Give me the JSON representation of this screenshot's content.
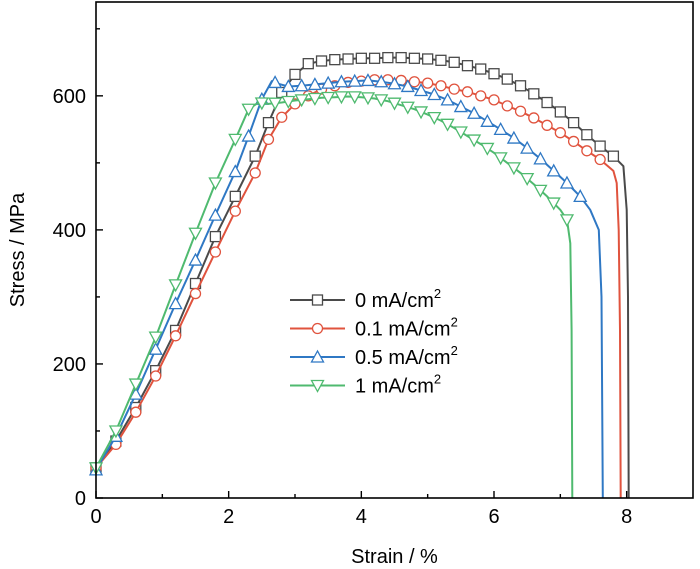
{
  "chart_data": {
    "type": "line",
    "xlabel": "Strain / %",
    "ylabel": "Stress / MPa",
    "xlim": [
      0,
      9
    ],
    "ylim": [
      0,
      740
    ],
    "xticks": [
      0,
      2,
      4,
      6,
      8
    ],
    "yticks": [
      0,
      200,
      400,
      600
    ],
    "x_tick_labels": [
      "0",
      "2",
      "4",
      "6",
      "8"
    ],
    "y_tick_labels": [
      "0",
      "200",
      "400",
      "600"
    ],
    "grid": false,
    "legend_position": "center",
    "series": [
      {
        "name": "0 mA/cm2",
        "label_main": "0 mA/cm",
        "label_sup": "2",
        "color": "#4a4a4a",
        "marker": "square",
        "points": [
          [
            0.0,
            45
          ],
          [
            0.3,
            85
          ],
          [
            0.6,
            135
          ],
          [
            0.9,
            190
          ],
          [
            1.2,
            250
          ],
          [
            1.5,
            320
          ],
          [
            1.8,
            390
          ],
          [
            2.1,
            450
          ],
          [
            2.4,
            510
          ],
          [
            2.6,
            560
          ],
          [
            2.8,
            605
          ],
          [
            3.0,
            632
          ],
          [
            3.2,
            648
          ],
          [
            3.4,
            652
          ],
          [
            3.6,
            654
          ],
          [
            3.8,
            655
          ],
          [
            4.0,
            656
          ],
          [
            4.2,
            656
          ],
          [
            4.4,
            657
          ],
          [
            4.6,
            657
          ],
          [
            4.8,
            656
          ],
          [
            5.0,
            655
          ],
          [
            5.2,
            653
          ],
          [
            5.4,
            650
          ],
          [
            5.6,
            645
          ],
          [
            5.8,
            640
          ],
          [
            6.0,
            633
          ],
          [
            6.2,
            625
          ],
          [
            6.4,
            615
          ],
          [
            6.6,
            603
          ],
          [
            6.8,
            590
          ],
          [
            7.0,
            576
          ],
          [
            7.2,
            560
          ],
          [
            7.4,
            542
          ],
          [
            7.6,
            525
          ],
          [
            7.8,
            510
          ],
          [
            7.95,
            495
          ],
          [
            8.0,
            430
          ],
          [
            8.02,
            300
          ],
          [
            8.03,
            0
          ]
        ],
        "markers_x": [
          0.0,
          0.3,
          0.6,
          0.9,
          1.2,
          1.5,
          1.8,
          2.1,
          2.4,
          2.6,
          2.8,
          3.0,
          3.2,
          3.4,
          3.6,
          3.8,
          4.0,
          4.2,
          4.4,
          4.6,
          4.8,
          5.0,
          5.2,
          5.4,
          5.6,
          5.8,
          6.0,
          6.2,
          6.4,
          6.6,
          6.8,
          7.0,
          7.2,
          7.4,
          7.6,
          7.8
        ]
      },
      {
        "name": "0.1 mA/cm2",
        "label_main": "0.1 mA/cm",
        "label_sup": "2",
        "color": "#e0533e",
        "marker": "circle",
        "points": [
          [
            0.0,
            45
          ],
          [
            0.3,
            80
          ],
          [
            0.6,
            128
          ],
          [
            0.9,
            182
          ],
          [
            1.2,
            242
          ],
          [
            1.5,
            305
          ],
          [
            1.8,
            367
          ],
          [
            2.1,
            428
          ],
          [
            2.4,
            485
          ],
          [
            2.6,
            535
          ],
          [
            2.8,
            568
          ],
          [
            3.0,
            588
          ],
          [
            3.2,
            600
          ],
          [
            3.4,
            610
          ],
          [
            3.6,
            615
          ],
          [
            3.8,
            620
          ],
          [
            4.0,
            622
          ],
          [
            4.2,
            624
          ],
          [
            4.4,
            624
          ],
          [
            4.6,
            623
          ],
          [
            4.8,
            621
          ],
          [
            5.0,
            619
          ],
          [
            5.2,
            615
          ],
          [
            5.4,
            610
          ],
          [
            5.6,
            606
          ],
          [
            5.8,
            600
          ],
          [
            6.0,
            594
          ],
          [
            6.2,
            585
          ],
          [
            6.4,
            577
          ],
          [
            6.6,
            567
          ],
          [
            6.8,
            556
          ],
          [
            7.0,
            545
          ],
          [
            7.2,
            532
          ],
          [
            7.4,
            518
          ],
          [
            7.6,
            505
          ],
          [
            7.8,
            488
          ],
          [
            7.85,
            470
          ],
          [
            7.88,
            400
          ],
          [
            7.9,
            250
          ],
          [
            7.91,
            0
          ]
        ],
        "markers_x": [
          0.0,
          0.3,
          0.6,
          0.9,
          1.2,
          1.5,
          1.8,
          2.1,
          2.4,
          2.6,
          2.8,
          3.0,
          3.2,
          3.4,
          3.6,
          3.8,
          4.0,
          4.2,
          4.4,
          4.6,
          4.8,
          5.0,
          5.2,
          5.4,
          5.6,
          5.8,
          6.0,
          6.2,
          6.4,
          6.6,
          6.8,
          7.0,
          7.2,
          7.4,
          7.6
        ]
      },
      {
        "name": "0.5 mA/cm2",
        "label_main": "0.5 mA/cm",
        "label_sup": "2",
        "color": "#2f78c4",
        "marker": "triangle-up",
        "points": [
          [
            0.0,
            42
          ],
          [
            0.3,
            92
          ],
          [
            0.6,
            155
          ],
          [
            0.9,
            222
          ],
          [
            1.2,
            290
          ],
          [
            1.5,
            355
          ],
          [
            1.8,
            422
          ],
          [
            2.1,
            487
          ],
          [
            2.3,
            540
          ],
          [
            2.5,
            595
          ],
          [
            2.65,
            622
          ],
          [
            2.75,
            618
          ],
          [
            2.9,
            614
          ],
          [
            3.1,
            615
          ],
          [
            3.3,
            617
          ],
          [
            3.5,
            619
          ],
          [
            3.7,
            621
          ],
          [
            3.9,
            622
          ],
          [
            4.1,
            623
          ],
          [
            4.3,
            621
          ],
          [
            4.5,
            618
          ],
          [
            4.7,
            614
          ],
          [
            4.9,
            608
          ],
          [
            5.1,
            602
          ],
          [
            5.3,
            594
          ],
          [
            5.5,
            584
          ],
          [
            5.7,
            574
          ],
          [
            5.9,
            562
          ],
          [
            6.1,
            550
          ],
          [
            6.3,
            537
          ],
          [
            6.5,
            522
          ],
          [
            6.7,
            506
          ],
          [
            6.9,
            488
          ],
          [
            7.1,
            470
          ],
          [
            7.3,
            450
          ],
          [
            7.45,
            430
          ],
          [
            7.58,
            400
          ],
          [
            7.62,
            300
          ],
          [
            7.64,
            0
          ]
        ],
        "markers_x": [
          0.0,
          0.3,
          0.6,
          0.9,
          1.2,
          1.5,
          1.8,
          2.1,
          2.3,
          2.5,
          2.7,
          2.9,
          3.1,
          3.3,
          3.5,
          3.7,
          3.9,
          4.1,
          4.3,
          4.5,
          4.7,
          4.9,
          5.1,
          5.3,
          5.5,
          5.7,
          5.9,
          6.1,
          6.3,
          6.5,
          6.7,
          6.9,
          7.1,
          7.3
        ]
      },
      {
        "name": "1 mA/cm2",
        "label_main": "1 mA/cm",
        "label_sup": "2",
        "color": "#4fba6f",
        "marker": "triangle-down",
        "points": [
          [
            0.0,
            45
          ],
          [
            0.3,
            100
          ],
          [
            0.6,
            170
          ],
          [
            0.9,
            240
          ],
          [
            1.2,
            318
          ],
          [
            1.5,
            395
          ],
          [
            1.8,
            470
          ],
          [
            2.1,
            535
          ],
          [
            2.3,
            580
          ],
          [
            2.45,
            590
          ],
          [
            2.6,
            588
          ],
          [
            2.8,
            590
          ],
          [
            3.0,
            593
          ],
          [
            3.2,
            595
          ],
          [
            3.4,
            597
          ],
          [
            3.6,
            598
          ],
          [
            3.8,
            599
          ],
          [
            4.0,
            598
          ],
          [
            4.2,
            596
          ],
          [
            4.4,
            592
          ],
          [
            4.6,
            586
          ],
          [
            4.8,
            580
          ],
          [
            5.0,
            572
          ],
          [
            5.2,
            563
          ],
          [
            5.4,
            552
          ],
          [
            5.6,
            540
          ],
          [
            5.8,
            528
          ],
          [
            6.0,
            515
          ],
          [
            6.2,
            500
          ],
          [
            6.4,
            485
          ],
          [
            6.6,
            468
          ],
          [
            6.8,
            450
          ],
          [
            7.0,
            430
          ],
          [
            7.1,
            415
          ],
          [
            7.15,
            380
          ],
          [
            7.17,
            250
          ],
          [
            7.18,
            0
          ]
        ],
        "markers_x": [
          0.0,
          0.3,
          0.6,
          0.9,
          1.2,
          1.5,
          1.8,
          2.1,
          2.3,
          2.5,
          2.7,
          2.9,
          3.1,
          3.3,
          3.5,
          3.7,
          3.9,
          4.1,
          4.3,
          4.5,
          4.7,
          4.9,
          5.1,
          5.3,
          5.5,
          5.7,
          5.9,
          6.1,
          6.3,
          6.5,
          6.7,
          6.9,
          7.1
        ]
      }
    ]
  }
}
